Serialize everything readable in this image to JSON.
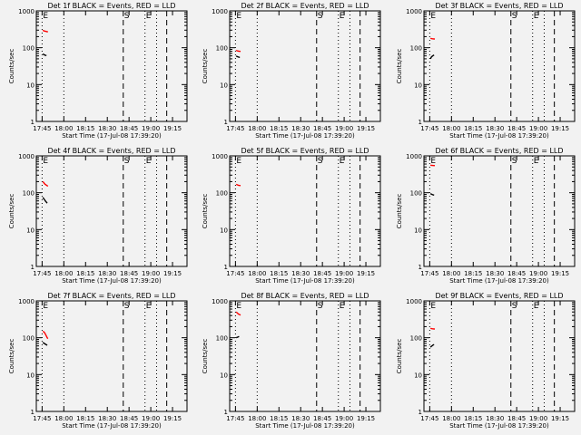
{
  "shared": {
    "x_ticks": [
      {
        "t": 0,
        "label": "17:45"
      },
      {
        "t": 15,
        "label": "18:00"
      },
      {
        "t": 30,
        "label": "18:15"
      },
      {
        "t": 45,
        "label": "18:30"
      },
      {
        "t": 60,
        "label": "18:45"
      },
      {
        "t": 75,
        "label": "19:00"
      },
      {
        "t": 90,
        "label": "19:15"
      }
    ],
    "x_range_minutes": [
      -4,
      100
    ],
    "y_ticks": [
      {
        "v": 1,
        "label": "1"
      },
      {
        "v": 10,
        "label": "10"
      },
      {
        "v": 100,
        "label": "100"
      },
      {
        "v": 1000,
        "label": "1000"
      }
    ],
    "ylim": [
      1,
      1000
    ],
    "ylabel": "Counts/sec",
    "xlabel": "Start Time (17-Jul-08 17:39:20)",
    "vlines": [
      {
        "t": 0,
        "style": "dotted",
        "flag": "E"
      },
      {
        "t": 15,
        "style": "dotted",
        "flag": ""
      },
      {
        "t": 56,
        "style": "dashed",
        "flag": "S"
      },
      {
        "t": 71,
        "style": "dotted",
        "flag": "E"
      },
      {
        "t": 79,
        "style": "dotted",
        "flag": ""
      },
      {
        "t": 86,
        "style": "dashed",
        "flag": ""
      }
    ],
    "colors": {
      "events": "#000000",
      "lld": "#ff0000"
    }
  },
  "chart_data": [
    {
      "type": "line",
      "title": "Det 1f BLACK = Events, RED = LLD",
      "yscale": "log",
      "series": [
        {
          "name": "Events",
          "x": [
            0.5,
            1.0,
            1.5,
            2.0,
            2.5,
            3.0
          ],
          "y": [
            68,
            66,
            64,
            63,
            62,
            61
          ]
        },
        {
          "name": "LLD",
          "x": [
            0.5,
            1.0,
            1.5,
            2.0,
            2.5,
            3.0,
            3.5,
            4.0
          ],
          "y": [
            300,
            290,
            285,
            280,
            278,
            275,
            272,
            270
          ]
        }
      ]
    },
    {
      "type": "line",
      "title": "Det 2f BLACK = Events, RED = LLD",
      "yscale": "log",
      "series": [
        {
          "name": "Events",
          "x": [
            0.5,
            1.0,
            1.5,
            2.0,
            2.5,
            3.0
          ],
          "y": [
            60,
            58,
            57,
            56,
            55,
            55
          ]
        },
        {
          "name": "LLD",
          "x": [
            0.5,
            1.0,
            1.5,
            2.0,
            2.5,
            3.0,
            3.5
          ],
          "y": [
            85,
            83,
            82,
            81,
            80,
            80,
            79
          ]
        }
      ]
    },
    {
      "type": "line",
      "title": "Det 3f BLACK = Events, RED = LLD",
      "yscale": "log",
      "series": [
        {
          "name": "Events",
          "x": [
            0.5,
            1.0,
            1.5,
            2.0,
            2.5,
            3.0
          ],
          "y": [
            50,
            55,
            58,
            60,
            62,
            63
          ]
        },
        {
          "name": "LLD",
          "x": [
            0.5,
            1.0,
            1.5,
            2.0,
            2.5,
            3.0,
            3.5
          ],
          "y": [
            180,
            178,
            176,
            175,
            174,
            173,
            172
          ]
        }
      ]
    },
    {
      "type": "line",
      "title": "Det 4f BLACK = Events, RED = LLD",
      "yscale": "log",
      "series": [
        {
          "name": "Events",
          "x": [
            0.5,
            1.0,
            1.5,
            2.0,
            2.5,
            3.0,
            3.5
          ],
          "y": [
            75,
            70,
            66,
            62,
            58,
            55,
            52
          ]
        },
        {
          "name": "LLD",
          "x": [
            0.5,
            1.0,
            1.5,
            2.0,
            2.5,
            3.0,
            3.5,
            4.0
          ],
          "y": [
            200,
            190,
            180,
            170,
            165,
            160,
            155,
            150
          ]
        }
      ]
    },
    {
      "type": "line",
      "title": "Det 5f BLACK = Events, RED = LLD",
      "yscale": "log",
      "series": [
        {
          "name": "LLD",
          "x": [
            0.5,
            1.0,
            1.5,
            2.0,
            2.5,
            3.0,
            3.5
          ],
          "y": [
            170,
            165,
            162,
            160,
            158,
            157,
            156
          ]
        }
      ]
    },
    {
      "type": "line",
      "title": "Det 6f BLACK = Events, RED = LLD",
      "yscale": "log",
      "series": [
        {
          "name": "Events",
          "x": [
            0.5,
            1.0,
            1.5,
            2.0,
            2.5,
            3.0
          ],
          "y": [
            95,
            92,
            90,
            88,
            87,
            86
          ]
        },
        {
          "name": "LLD",
          "x": [
            0.5,
            1.0,
            1.5,
            2.0,
            2.5,
            3.0,
            3.5
          ],
          "y": [
            560,
            555,
            550,
            548,
            546,
            545,
            544
          ]
        }
      ]
    },
    {
      "type": "line",
      "title": "Det 7f BLACK = Events, RED = LLD",
      "yscale": "log",
      "series": [
        {
          "name": "Events",
          "x": [
            0.5,
            1.0,
            1.5,
            2.0,
            2.5,
            3.0,
            3.5
          ],
          "y": [
            75,
            72,
            70,
            68,
            66,
            64,
            62
          ]
        },
        {
          "name": "LLD",
          "x": [
            0.5,
            1.0,
            1.5,
            2.0,
            2.5,
            3.0,
            3.5,
            4.0
          ],
          "y": [
            150,
            145,
            140,
            130,
            120,
            110,
            100,
            95
          ]
        }
      ]
    },
    {
      "type": "line",
      "title": "Det 8f BLACK = Events, RED = LLD",
      "yscale": "log",
      "series": [
        {
          "name": "Events",
          "x": [
            0.5,
            1.0,
            1.5,
            2.0,
            2.5
          ],
          "y": [
            100,
            102,
            104,
            106,
            108
          ]
        },
        {
          "name": "LLD",
          "x": [
            0.5,
            1.0,
            1.5,
            2.0,
            2.5,
            3.0,
            3.5
          ],
          "y": [
            500,
            480,
            460,
            440,
            430,
            420,
            410
          ]
        }
      ]
    },
    {
      "type": "line",
      "title": "Det 9f BLACK = Events, RED = LLD",
      "yscale": "log",
      "series": [
        {
          "name": "Events",
          "x": [
            0.5,
            1.0,
            1.5,
            2.0,
            2.5,
            3.0
          ],
          "y": [
            55,
            58,
            60,
            62,
            64,
            65
          ]
        },
        {
          "name": "LLD",
          "x": [
            0.5,
            1.0,
            1.5,
            2.0,
            2.5,
            3.0,
            3.5
          ],
          "y": [
            180,
            178,
            176,
            175,
            174,
            173,
            172
          ]
        }
      ]
    }
  ]
}
